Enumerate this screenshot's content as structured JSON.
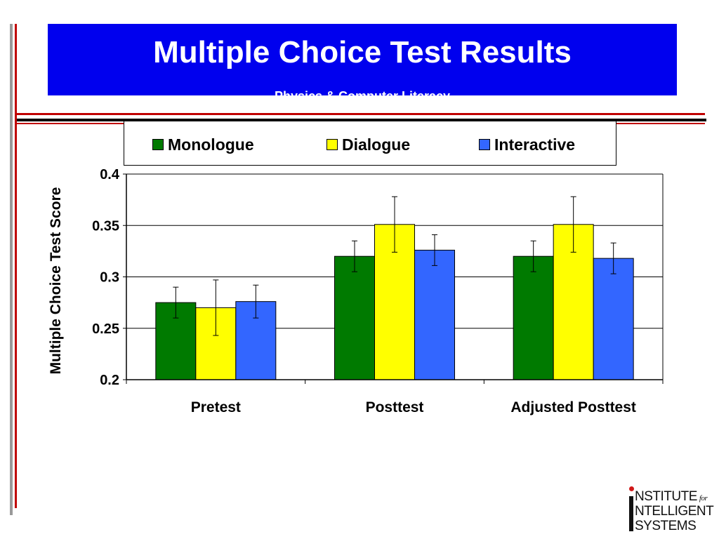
{
  "slide": {
    "title": "Multiple Choice Test Results",
    "subtitle": "Physics & Computer Literacy"
  },
  "logo": {
    "line1": "NSTITUTE",
    "line1_for": "for",
    "line2": "NTELLIGENT",
    "line3": "SYSTEMS"
  },
  "colors": {
    "title_bg": "#0000ee",
    "accent_red": "#c00000",
    "monologue": "#007a00",
    "dialogue": "#ffff00",
    "interactive": "#3366ff"
  },
  "chart_data": {
    "type": "bar",
    "title": "",
    "ylabel": "Multiple Choice Test Score",
    "xlabel": "",
    "ylim": [
      0.2,
      0.4
    ],
    "yticks": [
      "0.4",
      "0.35",
      "0.3",
      "0.25",
      "0.2"
    ],
    "grid": true,
    "legend_position": "top",
    "categories": [
      "Pretest",
      "Posttest",
      "Adjusted Posttest"
    ],
    "series": [
      {
        "name": "Monologue",
        "color": "#007a00",
        "values": [
          0.275,
          0.32,
          0.32
        ],
        "errors": [
          0.015,
          0.015,
          0.015
        ]
      },
      {
        "name": "Dialogue",
        "color": "#ffff00",
        "values": [
          0.27,
          0.351,
          0.351
        ],
        "errors": [
          0.027,
          0.027,
          0.027
        ]
      },
      {
        "name": "Interactive",
        "color": "#3366ff",
        "values": [
          0.276,
          0.326,
          0.318
        ],
        "errors": [
          0.016,
          0.015,
          0.015
        ]
      }
    ]
  }
}
